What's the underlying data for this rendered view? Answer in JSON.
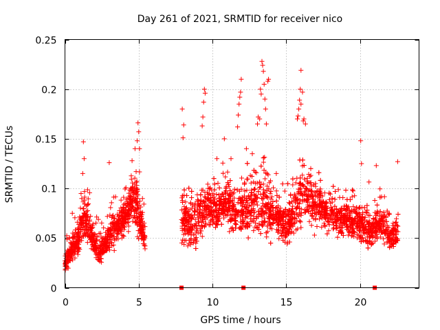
{
  "chart_data": {
    "type": "scatter",
    "title": "Day 261 of 2021, SRMTID for receiver nico",
    "xlabel": "GPS time / hours",
    "ylabel": "SRMTID / TECUs",
    "xlim": [
      0,
      24
    ],
    "ylim": [
      0,
      0.25
    ],
    "xticks": [
      0,
      5,
      10,
      15,
      20
    ],
    "xtick_labels": [
      "0",
      "5",
      "10",
      "15",
      "20"
    ],
    "yticks": [
      0,
      0.05,
      0.1,
      0.15,
      0.2,
      0.25
    ],
    "ytick_labels": [
      "0",
      "0.05",
      "0.1",
      "0.15",
      "0.2",
      "0.25"
    ],
    "grid": true,
    "marker": "+",
    "color": "#ff0000",
    "series": [
      {
        "name": "SRMTID",
        "profile_hours": [
          0,
          0.5,
          1.0,
          1.3,
          1.8,
          2.3,
          2.8,
          3.3,
          3.8,
          4.3,
          4.7,
          5.0,
          5.4,
          8.0,
          8.5,
          9.0,
          9.5,
          10.0,
          10.5,
          11.0,
          11.5,
          12.0,
          12.5,
          13.0,
          13.4,
          14.0,
          14.5,
          15.0,
          15.5,
          16.0,
          16.5,
          17.0,
          17.5,
          18.0,
          18.5,
          19.0,
          19.5,
          20.0,
          20.5,
          21.0,
          21.5,
          22.0,
          22.5
        ],
        "profile_median": [
          0.025,
          0.04,
          0.05,
          0.075,
          0.05,
          0.035,
          0.045,
          0.06,
          0.065,
          0.08,
          0.09,
          0.07,
          0.05,
          0.07,
          0.06,
          0.07,
          0.08,
          0.08,
          0.08,
          0.085,
          0.075,
          0.08,
          0.08,
          0.085,
          0.09,
          0.075,
          0.07,
          0.06,
          0.075,
          0.095,
          0.09,
          0.085,
          0.08,
          0.075,
          0.07,
          0.07,
          0.065,
          0.065,
          0.055,
          0.06,
          0.065,
          0.05,
          0.055
        ],
        "profile_spread": [
          0.012,
          0.02,
          0.025,
          0.035,
          0.02,
          0.015,
          0.02,
          0.025,
          0.025,
          0.03,
          0.035,
          0.035,
          0.015,
          0.04,
          0.03,
          0.04,
          0.04,
          0.035,
          0.03,
          0.035,
          0.03,
          0.04,
          0.04,
          0.05,
          0.06,
          0.03,
          0.03,
          0.025,
          0.035,
          0.045,
          0.04,
          0.035,
          0.03,
          0.025,
          0.03,
          0.025,
          0.025,
          0.03,
          0.025,
          0.025,
          0.025,
          0.02,
          0.025
        ],
        "spikes": [
          [
            1.25,
            0.147
          ],
          [
            1.3,
            0.13
          ],
          [
            1.2,
            0.115
          ],
          [
            3.0,
            0.126
          ],
          [
            4.55,
            0.128
          ],
          [
            4.95,
            0.166
          ],
          [
            5.0,
            0.157
          ],
          [
            4.9,
            0.148
          ],
          [
            4.75,
            0.14
          ],
          [
            5.05,
            0.14
          ],
          [
            7.95,
            0.18
          ],
          [
            8.05,
            0.164
          ],
          [
            8.0,
            0.151
          ],
          [
            9.45,
            0.2
          ],
          [
            9.5,
            0.196
          ],
          [
            9.4,
            0.187
          ],
          [
            9.35,
            0.172
          ],
          [
            9.3,
            0.163
          ],
          [
            10.3,
            0.13
          ],
          [
            10.8,
            0.15
          ],
          [
            11.7,
            0.162
          ],
          [
            11.75,
            0.174
          ],
          [
            11.8,
            0.185
          ],
          [
            11.85,
            0.192
          ],
          [
            11.9,
            0.197
          ],
          [
            11.95,
            0.21
          ],
          [
            12.3,
            0.14
          ],
          [
            12.7,
            0.135
          ],
          [
            13.05,
            0.165
          ],
          [
            13.1,
            0.172
          ],
          [
            13.2,
            0.17
          ],
          [
            13.25,
            0.2
          ],
          [
            13.3,
            0.195
          ],
          [
            13.35,
            0.228
          ],
          [
            13.4,
            0.224
          ],
          [
            13.45,
            0.218
          ],
          [
            13.5,
            0.205
          ],
          [
            13.55,
            0.19
          ],
          [
            13.6,
            0.18
          ],
          [
            13.65,
            0.165
          ],
          [
            13.75,
            0.208
          ],
          [
            13.8,
            0.21
          ],
          [
            15.75,
            0.17
          ],
          [
            15.8,
            0.173
          ],
          [
            15.85,
            0.18
          ],
          [
            15.9,
            0.189
          ],
          [
            15.95,
            0.2
          ],
          [
            16.0,
            0.219
          ],
          [
            16.1,
            0.197
          ],
          [
            16.15,
            0.168
          ],
          [
            16.3,
            0.165
          ],
          [
            16.0,
            0.185
          ],
          [
            16.2,
            0.17
          ],
          [
            20.05,
            0.148
          ],
          [
            20.1,
            0.125
          ],
          [
            21.1,
            0.123
          ],
          [
            22.55,
            0.127
          ]
        ]
      }
    ],
    "gap_markers_hours": [
      7.9,
      12.1,
      21.0
    ]
  }
}
